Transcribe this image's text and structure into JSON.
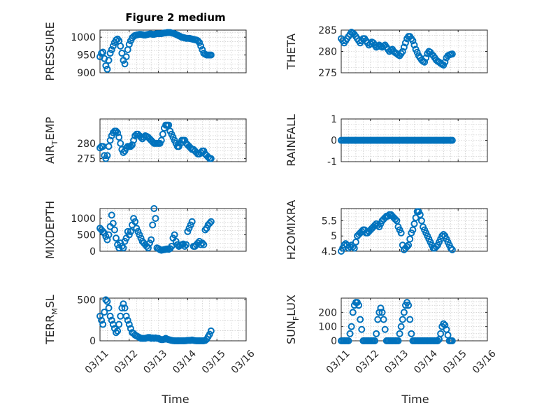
{
  "figure": {
    "title": "Figure 2 medium",
    "marker_color": "#0072BD"
  },
  "chart_data": [
    {
      "type": "scatter",
      "ylabel": "PRESSURE",
      "yticks": [
        900,
        950,
        1000
      ],
      "ylim": [
        900,
        1020
      ],
      "xlim": [
        0,
        5
      ],
      "xticks": [
        "03/11",
        "03/12",
        "03/13",
        "03/14",
        "03/15",
        "03/16"
      ],
      "grid": true,
      "x": [
        0,
        0.05,
        0.1,
        0.15,
        0.2,
        0.25,
        0.3,
        0.35,
        0.4,
        0.45,
        0.5,
        0.55,
        0.6,
        0.65,
        0.7,
        0.75,
        0.8,
        0.85,
        0.9,
        0.95,
        1.0,
        1.05,
        1.1,
        1.15,
        1.2,
        1.25,
        1.3,
        1.35,
        1.4,
        1.45,
        1.5,
        1.55,
        1.6,
        1.65,
        1.7,
        1.75,
        1.8,
        1.85,
        1.9,
        1.95,
        2.0,
        2.05,
        2.1,
        2.15,
        2.2,
        2.25,
        2.3,
        2.35,
        2.4,
        2.45,
        2.5,
        2.55,
        2.6,
        2.65,
        2.7,
        2.75,
        2.8,
        2.85,
        2.9,
        2.95,
        3.0,
        3.05,
        3.1,
        3.15,
        3.2,
        3.25,
        3.3,
        3.35,
        3.4,
        3.45,
        3.5,
        3.55,
        3.6,
        3.65,
        3.7,
        3.75,
        3.8
      ],
      "y": [
        945,
        955,
        958,
        940,
        920,
        910,
        935,
        955,
        965,
        975,
        985,
        992,
        995,
        990,
        975,
        955,
        935,
        925,
        945,
        965,
        980,
        990,
        998,
        1002,
        1005,
        1006,
        1007,
        1008,
        1008,
        1007,
        1006,
        1006,
        1007,
        1008,
        1009,
        1009,
        1008,
        1008,
        1009,
        1010,
        1010,
        1010,
        1010,
        1011,
        1012,
        1012,
        1013,
        1013,
        1013,
        1012,
        1011,
        1010,
        1008,
        1006,
        1004,
        1002,
        1000,
        999,
        998,
        997,
        997,
        997,
        996,
        995,
        994,
        993,
        992,
        990,
        985,
        975,
        965,
        955,
        952,
        950,
        950,
        950,
        950
      ]
    },
    {
      "type": "scatter",
      "ylabel": "THETA",
      "yticks": [
        275,
        280,
        285
      ],
      "ylim": [
        275,
        285
      ],
      "xlim": [
        0,
        5
      ],
      "xticks": [
        "03/11",
        "03/12",
        "03/13",
        "03/14",
        "03/15",
        "03/16"
      ],
      "grid": true,
      "x": [
        0,
        0.05,
        0.1,
        0.15,
        0.2,
        0.25,
        0.3,
        0.35,
        0.4,
        0.45,
        0.5,
        0.55,
        0.6,
        0.65,
        0.7,
        0.75,
        0.8,
        0.85,
        0.9,
        0.95,
        1.0,
        1.05,
        1.1,
        1.15,
        1.2,
        1.25,
        1.3,
        1.35,
        1.4,
        1.45,
        1.5,
        1.55,
        1.6,
        1.65,
        1.7,
        1.75,
        1.8,
        1.85,
        1.9,
        1.95,
        2.0,
        2.05,
        2.1,
        2.15,
        2.2,
        2.25,
        2.3,
        2.35,
        2.4,
        2.45,
        2.5,
        2.55,
        2.6,
        2.65,
        2.7,
        2.75,
        2.8,
        2.85,
        2.9,
        2.95,
        3.0,
        3.05,
        3.1,
        3.15,
        3.2,
        3.25,
        3.3,
        3.35,
        3.4,
        3.45,
        3.5,
        3.55,
        3.6,
        3.65,
        3.7,
        3.75,
        3.8
      ],
      "y": [
        283,
        282.5,
        282,
        282.5,
        283,
        283.5,
        284,
        284.5,
        284.3,
        284,
        283.5,
        283,
        282.5,
        282,
        282.5,
        283,
        283,
        282.5,
        282,
        281.5,
        281.8,
        282.2,
        282,
        281.5,
        281,
        281.2,
        281.5,
        281.2,
        281,
        281.3,
        281.5,
        281,
        280.5,
        280,
        280.3,
        280.5,
        280,
        279.7,
        279.5,
        279.2,
        279,
        279.5,
        280,
        281,
        282,
        283,
        283.5,
        283.5,
        283,
        282.5,
        281.5,
        280.5,
        279.8,
        279,
        278.5,
        278,
        277.7,
        277.5,
        278.5,
        279.5,
        280,
        279.8,
        279.3,
        279,
        278.5,
        278,
        277.7,
        277.5,
        277.2,
        277,
        276.8,
        277.5,
        278.5,
        279,
        279.2,
        279.3,
        279.4
      ]
    },
    {
      "type": "scatter",
      "ylabel": "AIR_TEMP",
      "ylabel_main": "AIR",
      "ylabel_sub": "T",
      "ylabel_rest": "EMP",
      "yticks": [
        275,
        280
      ],
      "ylim": [
        274,
        288
      ],
      "xlim": [
        0,
        5
      ],
      "xticks": [
        "03/11",
        "03/12",
        "03/13",
        "03/14",
        "03/15",
        "03/16"
      ],
      "grid": true,
      "x": [
        0,
        0.05,
        0.1,
        0.15,
        0.2,
        0.25,
        0.3,
        0.35,
        0.4,
        0.45,
        0.5,
        0.55,
        0.6,
        0.65,
        0.7,
        0.75,
        0.8,
        0.85,
        0.9,
        0.95,
        1.0,
        1.05,
        1.1,
        1.15,
        1.2,
        1.25,
        1.3,
        1.35,
        1.4,
        1.45,
        1.5,
        1.55,
        1.6,
        1.65,
        1.7,
        1.75,
        1.8,
        1.85,
        1.9,
        1.95,
        2.0,
        2.05,
        2.1,
        2.15,
        2.2,
        2.25,
        2.3,
        2.35,
        2.4,
        2.45,
        2.5,
        2.55,
        2.6,
        2.65,
        2.7,
        2.75,
        2.8,
        2.85,
        2.9,
        2.95,
        3.0,
        3.05,
        3.1,
        3.15,
        3.2,
        3.25,
        3.3,
        3.35,
        3.4,
        3.45,
        3.5,
        3.55,
        3.6,
        3.65,
        3.7,
        3.75,
        3.8
      ],
      "y": [
        278.5,
        279,
        279,
        276,
        275,
        276,
        279,
        281,
        282.5,
        283.5,
        284,
        284,
        283.5,
        282,
        280,
        278,
        277,
        277.5,
        278.5,
        279,
        279,
        279,
        279.5,
        281,
        282.5,
        283,
        283,
        282.5,
        282,
        281.5,
        282,
        282.5,
        282.3,
        282,
        281.5,
        281,
        280.5,
        280,
        280,
        280,
        280,
        280,
        281,
        283,
        285,
        286,
        286,
        286,
        284,
        283,
        282,
        281,
        280,
        279,
        279,
        280,
        281,
        281,
        281,
        280,
        279.5,
        279,
        278.5,
        278,
        278,
        277.5,
        277,
        276.5,
        276.5,
        277,
        277.5,
        277.5,
        276.5,
        276,
        275.5,
        275,
        275
      ]
    },
    {
      "type": "scatter",
      "ylabel": "RAINFALL",
      "yticks": [
        -1,
        0,
        1
      ],
      "ylim": [
        -1,
        1
      ],
      "xlim": [
        0,
        5
      ],
      "xticks": [
        "03/11",
        "03/12",
        "03/13",
        "03/14",
        "03/15",
        "03/16"
      ],
      "grid": true,
      "x": [
        0,
        0.05,
        0.1,
        0.15,
        0.2,
        0.25,
        0.3,
        0.35,
        0.4,
        0.45,
        0.5,
        0.55,
        0.6,
        0.65,
        0.7,
        0.75,
        0.8,
        0.85,
        0.9,
        0.95,
        1.0,
        1.05,
        1.1,
        1.15,
        1.2,
        1.25,
        1.3,
        1.35,
        1.4,
        1.45,
        1.5,
        1.55,
        1.6,
        1.65,
        1.7,
        1.75,
        1.8,
        1.85,
        1.9,
        1.95,
        2.0,
        2.05,
        2.1,
        2.15,
        2.2,
        2.25,
        2.3,
        2.35,
        2.4,
        2.45,
        2.5,
        2.55,
        2.6,
        2.65,
        2.7,
        2.75,
        2.8,
        2.85,
        2.9,
        2.95,
        3.0,
        3.05,
        3.1,
        3.15,
        3.2,
        3.25,
        3.3,
        3.35,
        3.4,
        3.45,
        3.5,
        3.55,
        3.6,
        3.65,
        3.7,
        3.75,
        3.8
      ],
      "y": [
        0,
        0,
        0,
        0,
        0,
        0,
        0,
        0,
        0,
        0,
        0,
        0,
        0,
        0,
        0,
        0,
        0,
        0,
        0,
        0,
        0,
        0,
        0,
        0,
        0,
        0,
        0,
        0,
        0,
        0,
        0,
        0,
        0,
        0,
        0,
        0,
        0,
        0,
        0,
        0,
        0,
        0,
        0,
        0,
        0,
        0,
        0,
        0,
        0,
        0,
        0,
        0,
        0,
        0,
        0,
        0,
        0,
        0,
        0,
        0,
        0,
        0,
        0,
        0,
        0,
        0,
        0,
        0,
        0,
        0,
        0,
        0,
        0,
        0,
        0,
        0,
        0
      ]
    },
    {
      "type": "scatter",
      "ylabel": "MIXDEPTH",
      "yticks": [
        0,
        500,
        1000
      ],
      "ylim": [
        0,
        1300
      ],
      "xlim": [
        0,
        5
      ],
      "xticks": [
        "03/11",
        "03/12",
        "03/13",
        "03/14",
        "03/15",
        "03/16"
      ],
      "grid": true,
      "x": [
        0,
        0.05,
        0.1,
        0.15,
        0.2,
        0.25,
        0.3,
        0.35,
        0.4,
        0.45,
        0.5,
        0.55,
        0.6,
        0.65,
        0.7,
        0.75,
        0.8,
        0.85,
        0.9,
        0.95,
        1.0,
        1.05,
        1.1,
        1.15,
        1.2,
        1.25,
        1.3,
        1.35,
        1.4,
        1.45,
        1.5,
        1.55,
        1.6,
        1.65,
        1.7,
        1.75,
        1.8,
        1.85,
        1.9,
        1.95,
        2.0,
        2.05,
        2.1,
        2.15,
        2.2,
        2.25,
        2.3,
        2.35,
        2.4,
        2.45,
        2.5,
        2.55,
        2.6,
        2.65,
        2.7,
        2.75,
        2.8,
        2.85,
        2.9,
        2.95,
        3.0,
        3.05,
        3.1,
        3.15,
        3.2,
        3.25,
        3.3,
        3.35,
        3.4,
        3.45,
        3.5,
        3.55,
        3.6,
        3.65,
        3.7,
        3.75,
        3.8
      ],
      "y": [
        700,
        650,
        600,
        550,
        450,
        350,
        500,
        750,
        1100,
        850,
        650,
        400,
        200,
        100,
        250,
        150,
        100,
        300,
        400,
        600,
        500,
        600,
        800,
        1000,
        900,
        700,
        600,
        500,
        400,
        300,
        250,
        200,
        150,
        100,
        250,
        350,
        800,
        1300,
        1000,
        100,
        80,
        50,
        30,
        40,
        50,
        60,
        70,
        60,
        80,
        150,
        400,
        500,
        300,
        200,
        150,
        180,
        200,
        220,
        150,
        200,
        600,
        700,
        800,
        900,
        150,
        150,
        200,
        250,
        300,
        200,
        250,
        200,
        650,
        700,
        800,
        850,
        900
      ]
    },
    {
      "type": "scatter",
      "ylabel": "H2OMIXRA",
      "yticks": [
        4.5,
        5,
        5.5
      ],
      "ylim": [
        4.5,
        5.9
      ],
      "xlim": [
        0,
        5
      ],
      "xticks": [
        "03/11",
        "03/12",
        "03/13",
        "03/14",
        "03/15",
        "03/16"
      ],
      "grid": true,
      "x": [
        0,
        0.05,
        0.1,
        0.15,
        0.2,
        0.25,
        0.3,
        0.35,
        0.4,
        0.45,
        0.5,
        0.55,
        0.6,
        0.65,
        0.7,
        0.75,
        0.8,
        0.85,
        0.9,
        0.95,
        1.0,
        1.05,
        1.1,
        1.15,
        1.2,
        1.25,
        1.3,
        1.35,
        1.4,
        1.45,
        1.5,
        1.55,
        1.6,
        1.65,
        1.7,
        1.75,
        1.8,
        1.85,
        1.9,
        1.95,
        2.0,
        2.05,
        2.1,
        2.15,
        2.2,
        2.25,
        2.3,
        2.35,
        2.4,
        2.45,
        2.5,
        2.55,
        2.6,
        2.65,
        2.7,
        2.75,
        2.8,
        2.85,
        2.9,
        2.95,
        3.0,
        3.05,
        3.1,
        3.15,
        3.2,
        3.25,
        3.3,
        3.35,
        3.4,
        3.45,
        3.5,
        3.55,
        3.6,
        3.65,
        3.7,
        3.75,
        3.8
      ],
      "y": [
        4.5,
        4.6,
        4.7,
        4.75,
        4.7,
        4.6,
        4.65,
        4.7,
        4.65,
        4.6,
        4.8,
        5.0,
        5.05,
        5.1,
        5.15,
        5.2,
        5.2,
        5.1,
        5.1,
        5.15,
        5.2,
        5.25,
        5.3,
        5.35,
        5.4,
        5.35,
        5.3,
        5.4,
        5.5,
        5.55,
        5.6,
        5.65,
        5.65,
        5.7,
        5.7,
        5.65,
        5.6,
        5.55,
        5.5,
        5.3,
        5.2,
        5.1,
        4.7,
        4.55,
        4.6,
        4.65,
        4.7,
        4.9,
        5.1,
        5.2,
        5.4,
        5.6,
        5.8,
        5.8,
        5.7,
        5.5,
        5.3,
        5.2,
        5.1,
        5.0,
        4.9,
        4.8,
        4.7,
        4.6,
        4.6,
        4.65,
        4.7,
        4.8,
        4.9,
        5.0,
        5.05,
        5.0,
        4.9,
        4.8,
        4.7,
        4.6,
        4.55
      ]
    },
    {
      "type": "scatter",
      "ylabel": "TERR_MSL",
      "ylabel_main": "TERR",
      "ylabel_sub": "M",
      "ylabel_rest": "SL",
      "yticks": [
        0,
        500
      ],
      "ylim": [
        0,
        520
      ],
      "xlim": [
        0,
        5
      ],
      "xticks": [
        "03/11",
        "03/12",
        "03/13",
        "03/14",
        "03/15",
        "03/16"
      ],
      "grid": true,
      "x": [
        0,
        0.05,
        0.1,
        0.15,
        0.2,
        0.25,
        0.3,
        0.35,
        0.4,
        0.45,
        0.5,
        0.55,
        0.6,
        0.65,
        0.7,
        0.75,
        0.8,
        0.85,
        0.9,
        0.95,
        1.0,
        1.05,
        1.1,
        1.15,
        1.2,
        1.25,
        1.3,
        1.35,
        1.4,
        1.45,
        1.5,
        1.55,
        1.6,
        1.65,
        1.7,
        1.75,
        1.8,
        1.85,
        1.9,
        1.95,
        2.0,
        2.05,
        2.1,
        2.15,
        2.2,
        2.25,
        2.3,
        2.35,
        2.4,
        2.45,
        2.5,
        2.55,
        2.6,
        2.65,
        2.7,
        2.75,
        2.8,
        2.85,
        2.9,
        2.95,
        3.0,
        3.05,
        3.1,
        3.15,
        3.2,
        3.25,
        3.3,
        3.35,
        3.4,
        3.45,
        3.5,
        3.55,
        3.6,
        3.65,
        3.7,
        3.75,
        3.8
      ],
      "y": [
        300,
        250,
        200,
        350,
        500,
        480,
        400,
        300,
        250,
        200,
        150,
        100,
        120,
        200,
        300,
        400,
        450,
        400,
        300,
        250,
        200,
        150,
        100,
        90,
        70,
        60,
        50,
        40,
        30,
        30,
        30,
        30,
        35,
        40,
        40,
        30,
        35,
        30,
        35,
        30,
        30,
        20,
        15,
        15,
        20,
        30,
        20,
        15,
        10,
        5,
        2,
        0,
        0,
        0,
        0,
        0,
        0,
        0,
        0,
        2,
        5,
        5,
        5,
        10,
        5,
        2,
        0,
        0,
        0,
        0,
        0,
        0,
        5,
        20,
        50,
        80,
        120
      ]
    },
    {
      "type": "scatter",
      "ylabel": "SUN_FLUX",
      "ylabel_main": "SUN",
      "ylabel_sub": "F",
      "ylabel_rest": "LUX",
      "yticks": [
        0,
        100,
        200
      ],
      "ylim": [
        0,
        300
      ],
      "xlim": [
        0,
        5
      ],
      "xticks": [
        "03/11",
        "03/12",
        "03/13",
        "03/14",
        "03/15",
        "03/16"
      ],
      "grid": true,
      "x": [
        0,
        0.05,
        0.1,
        0.15,
        0.2,
        0.25,
        0.3,
        0.35,
        0.4,
        0.45,
        0.5,
        0.55,
        0.6,
        0.65,
        0.7,
        0.75,
        0.8,
        0.85,
        0.9,
        0.95,
        1.0,
        1.05,
        1.1,
        1.15,
        1.2,
        1.25,
        1.3,
        1.35,
        1.4,
        1.45,
        1.5,
        1.55,
        1.6,
        1.65,
        1.7,
        1.75,
        1.8,
        1.85,
        1.9,
        1.95,
        2.0,
        2.05,
        2.1,
        2.15,
        2.2,
        2.25,
        2.3,
        2.35,
        2.4,
        2.45,
        2.5,
        2.55,
        2.6,
        2.65,
        2.7,
        2.75,
        2.8,
        2.85,
        2.9,
        2.95,
        3.0,
        3.05,
        3.1,
        3.15,
        3.2,
        3.25,
        3.3,
        3.35,
        3.4,
        3.45,
        3.5,
        3.55,
        3.6,
        3.65,
        3.7,
        3.75,
        3.8
      ],
      "y": [
        0,
        0,
        0,
        0,
        0,
        0,
        50,
        100,
        200,
        250,
        270,
        270,
        250,
        150,
        80,
        0,
        0,
        0,
        0,
        0,
        0,
        0,
        0,
        0,
        50,
        150,
        200,
        230,
        200,
        150,
        80,
        0,
        0,
        0,
        0,
        0,
        0,
        0,
        0,
        0,
        50,
        100,
        150,
        200,
        250,
        270,
        250,
        150,
        50,
        0,
        0,
        0,
        0,
        0,
        0,
        0,
        0,
        0,
        0,
        0,
        0,
        0,
        0,
        0,
        0,
        0,
        0,
        10,
        50,
        100,
        120,
        110,
        80,
        40,
        0,
        0,
        0
      ]
    }
  ],
  "xaxis_label": "Time"
}
